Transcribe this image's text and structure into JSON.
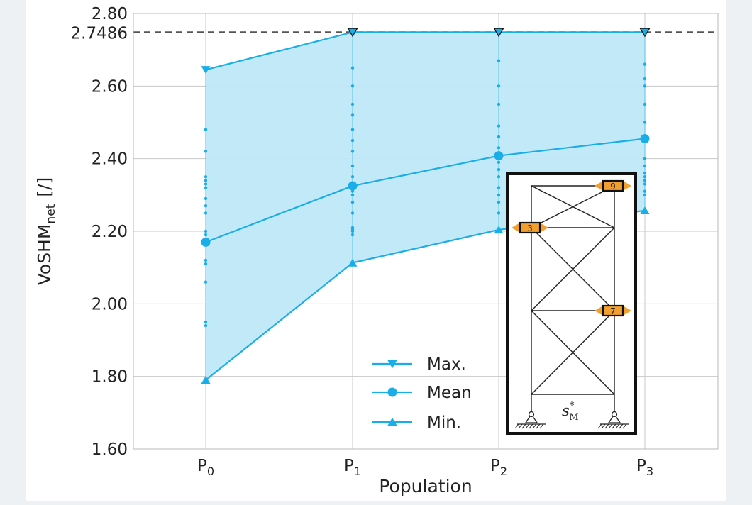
{
  "chart_data": {
    "type": "line",
    "categories": [
      {
        "base": "P",
        "sub": "0"
      },
      {
        "base": "P",
        "sub": "1"
      },
      {
        "base": "P",
        "sub": "2"
      },
      {
        "base": "P",
        "sub": "3"
      }
    ],
    "xlabel": "Population",
    "ylabel": {
      "base": "VoSHM",
      "sub": "net",
      "suffix": "[/]"
    },
    "ylim": [
      1.6,
      2.8
    ],
    "yticks": [
      "1.60",
      "1.80",
      "2.00",
      "2.20",
      "2.40",
      "2.60",
      "2.80"
    ],
    "reference_line": {
      "value": 2.7486,
      "label": "2.7486"
    },
    "grid": true,
    "legend_position": "lower-center",
    "series": [
      {
        "name": "Max.",
        "marker": "triangle-down",
        "values": [
          2.645,
          2.7486,
          2.7486,
          2.7486
        ]
      },
      {
        "name": "Mean",
        "marker": "circle",
        "values": [
          2.17,
          2.325,
          2.408,
          2.455
        ]
      },
      {
        "name": "Min.",
        "marker": "triangle-up",
        "values": [
          1.79,
          2.113,
          2.204,
          2.257
        ]
      }
    ],
    "scatter_points": [
      [
        1.79,
        1.94,
        1.95,
        2.06,
        2.11,
        2.12,
        2.19,
        2.2,
        2.25,
        2.27,
        2.29,
        2.32,
        2.33,
        2.34,
        2.35,
        2.42,
        2.48,
        2.645
      ],
      [
        2.113,
        2.19,
        2.2,
        2.205,
        2.21,
        2.25,
        2.28,
        2.3,
        2.31,
        2.33,
        2.35,
        2.38,
        2.42,
        2.45,
        2.48,
        2.52,
        2.55,
        2.6,
        2.65,
        2.7486
      ],
      [
        2.204,
        2.25,
        2.28,
        2.3,
        2.32,
        2.35,
        2.37,
        2.39,
        2.41,
        2.43,
        2.46,
        2.49,
        2.55,
        2.6,
        2.67,
        2.7486
      ],
      [
        2.257,
        2.3,
        2.31,
        2.33,
        2.34,
        2.35,
        2.36,
        2.38,
        2.4,
        2.45,
        2.5,
        2.55,
        2.6,
        2.62,
        2.66,
        2.7486
      ]
    ],
    "colors": {
      "series": "#1aaee8",
      "fill": "#bfe8f8",
      "reference": "#555555",
      "grid": "#c8c8c8",
      "sensor": "#f0a030"
    }
  },
  "inset": {
    "structure_label": {
      "base": "s",
      "sup": "*",
      "sub": "M"
    },
    "sensors": [
      {
        "id": "9",
        "node": "top-right"
      },
      {
        "id": "3",
        "node": "level3-left"
      },
      {
        "id": "7",
        "node": "level2-right"
      }
    ]
  }
}
